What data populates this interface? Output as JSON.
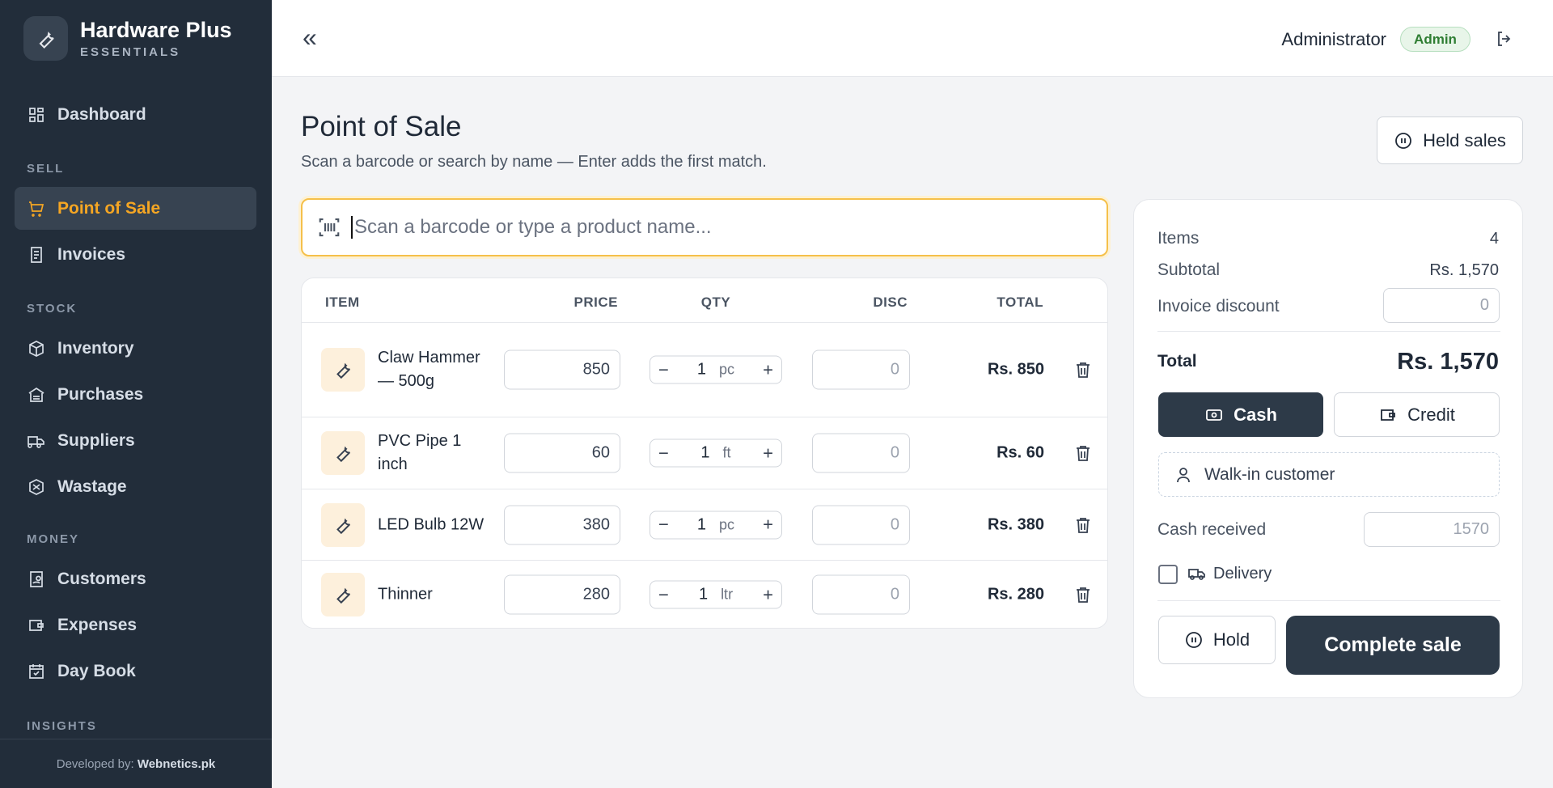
{
  "brand": {
    "name": "Hardware Plus",
    "tagline": "ESSENTIALS"
  },
  "nav": {
    "top": "Dashboard",
    "sections": [
      {
        "title": "SELL",
        "items": [
          "Point of Sale",
          "Invoices"
        ]
      },
      {
        "title": "STOCK",
        "items": [
          "Inventory",
          "Purchases",
          "Suppliers",
          "Wastage"
        ]
      },
      {
        "title": "MONEY",
        "items": [
          "Customers",
          "Expenses",
          "Day Book"
        ]
      },
      {
        "title": "INSIGHTS",
        "items": []
      }
    ],
    "active": "Point of Sale"
  },
  "footer": {
    "prefix": "Developed by:",
    "name": "Webnetics.pk"
  },
  "header": {
    "collapse": "«",
    "user": "Administrator",
    "role": "Admin"
  },
  "page": {
    "title": "Point of Sale",
    "subtitle": "Scan a barcode or search by name — Enter adds the first match.",
    "held_button": "Held sales",
    "search_placeholder": "Scan a barcode or type a product name..."
  },
  "cart": {
    "columns": [
      "ITEM",
      "PRICE",
      "QTY",
      "DISC",
      "TOTAL"
    ],
    "rows": [
      {
        "name": "Claw Hammer — 500g",
        "price": "850",
        "qty": "1",
        "unit": "pc",
        "disc": "0",
        "total": "Rs. 850"
      },
      {
        "name": "PVC Pipe 1 inch",
        "price": "60",
        "qty": "1",
        "unit": "ft",
        "disc": "0",
        "total": "Rs. 60"
      },
      {
        "name": "LED Bulb 12W",
        "price": "380",
        "qty": "1",
        "unit": "pc",
        "disc": "0",
        "total": "Rs. 380"
      },
      {
        "name": "Thinner",
        "price": "280",
        "qty": "1",
        "unit": "ltr",
        "disc": "0",
        "total": "Rs. 280"
      }
    ]
  },
  "summary": {
    "items_label": "Items",
    "items_value": "4",
    "subtotal_label": "Subtotal",
    "subtotal_value": "Rs. 1,570",
    "discount_label": "Invoice discount",
    "discount_placeholder": "0",
    "total_label": "Total",
    "total_value": "Rs. 1,570",
    "cash": "Cash",
    "credit": "Credit",
    "customer": "Walk-in customer",
    "cash_received_label": "Cash received",
    "cash_received_placeholder": "1570",
    "delivery": "Delivery",
    "hold": "Hold",
    "complete": "Complete sale"
  }
}
